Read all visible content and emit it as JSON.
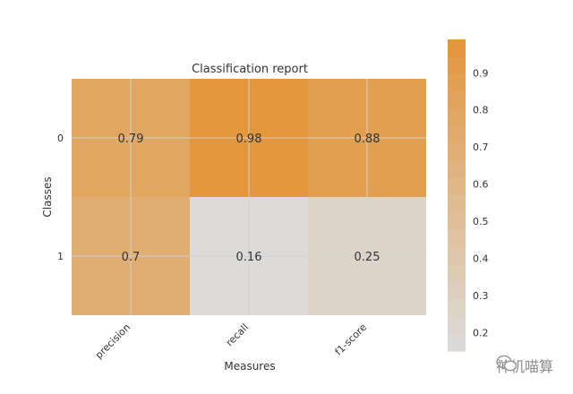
{
  "chart_data": {
    "type": "heatmap",
    "title": "Classification report",
    "xlabel": "Measures",
    "ylabel": "Classes",
    "x_categories": [
      "precision",
      "recall",
      "f1-score"
    ],
    "y_categories": [
      "0",
      "1"
    ],
    "values": [
      [
        0.79,
        0.98,
        0.88
      ],
      [
        0.7,
        0.16,
        0.25
      ]
    ],
    "value_labels": [
      [
        "0.79",
        "0.98",
        "0.88"
      ],
      [
        "0.7",
        "0.16",
        "0.25"
      ]
    ],
    "colorbar": {
      "range": [
        0.15,
        0.99
      ],
      "ticks": [
        "0.2",
        "0.3",
        "0.4",
        "0.5",
        "0.6",
        "0.7",
        "0.8",
        "0.9"
      ]
    },
    "colors": {
      "low": "#dcdcdc",
      "high": "#e3963a",
      "grid": "#cfcfcf"
    },
    "grid": true
  },
  "watermark": {
    "text": "神机喵算",
    "icon": "wechat-icon"
  }
}
